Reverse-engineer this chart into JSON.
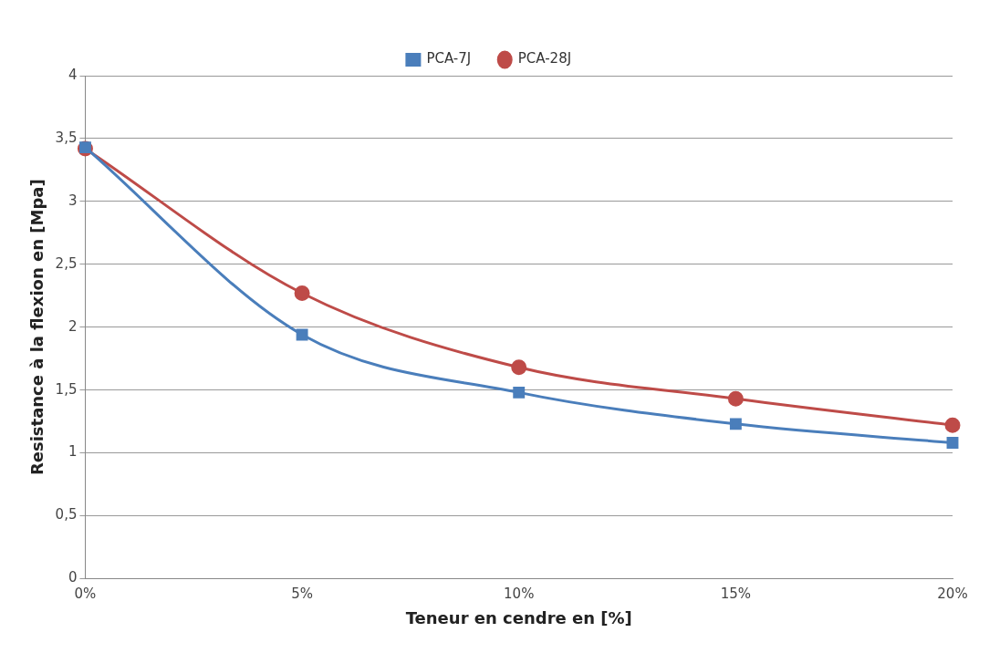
{
  "chart_data": {
    "type": "line",
    "xlabel": "Teneur en cendre en [%]",
    "ylabel": "Resistance à la flexion en [Mpa]",
    "categories": [
      "0%",
      "5%",
      "10%",
      "15%",
      "20%"
    ],
    "series": [
      {
        "name": "PCA-7J",
        "color": "#4a7ebb",
        "marker": "square",
        "values": [
          3.43,
          1.94,
          1.48,
          1.23,
          1.08
        ]
      },
      {
        "name": "PCA-28J",
        "color": "#be4b48",
        "marker": "circle",
        "values": [
          3.42,
          2.27,
          1.68,
          1.43,
          1.22
        ]
      }
    ],
    "ylim": [
      0,
      4
    ],
    "yticks": [
      0,
      {
        "value": 0.5,
        "label": "0,5"
      },
      1,
      {
        "value": 1.5,
        "label": "1,5"
      },
      2,
      {
        "value": 2.5,
        "label": "2,5"
      },
      3,
      {
        "value": 3.5,
        "label": "3,5"
      },
      4
    ],
    "grid": "y",
    "legend": "top",
    "line_style": "solid"
  }
}
